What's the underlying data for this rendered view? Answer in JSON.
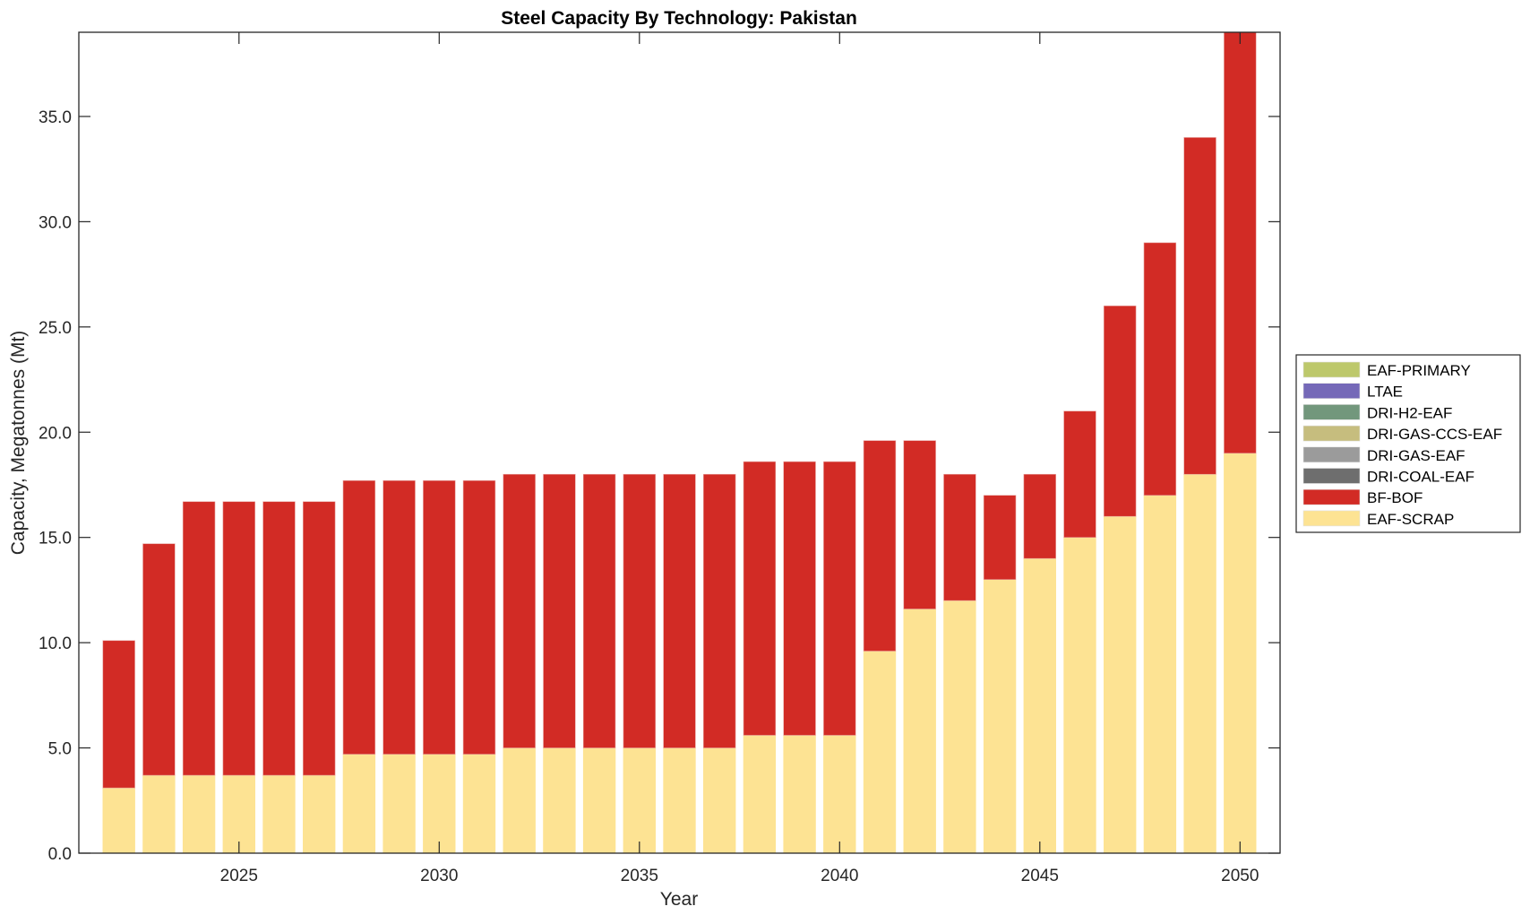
{
  "chart_data": {
    "type": "bar",
    "stacked": true,
    "title": "Steel Capacity By Technology: Pakistan",
    "xlabel": "Year",
    "ylabel": "Capacity, Megatonnes (Mt)",
    "xlim": [
      2021,
      2051
    ],
    "ylim": [
      0,
      39
    ],
    "xticks": [
      2025,
      2030,
      2035,
      2040,
      2045,
      2050
    ],
    "xtick_labels": [
      "2025",
      "2030",
      "2035",
      "2040",
      "2045",
      "2050"
    ],
    "yticks": [
      0,
      5,
      10,
      15,
      20,
      25,
      30,
      35
    ],
    "ytick_labels": [
      "0.0",
      "5.0",
      "10.0",
      "15.0",
      "20.0",
      "25.0",
      "30.0",
      "35.0"
    ],
    "grid": false,
    "legend_position": "right",
    "x": [
      2022,
      2023,
      2024,
      2025,
      2026,
      2027,
      2028,
      2029,
      2030,
      2031,
      2032,
      2033,
      2034,
      2035,
      2036,
      2037,
      2038,
      2039,
      2040,
      2041,
      2042,
      2043,
      2044,
      2045,
      2046,
      2047,
      2048,
      2049,
      2050
    ],
    "series": [
      {
        "name": "EAF-SCRAP",
        "color": "#FDE393",
        "values": [
          3.1,
          3.7,
          3.7,
          3.7,
          3.7,
          3.7,
          4.7,
          4.7,
          4.7,
          4.7,
          5.0,
          5.0,
          5.0,
          5.0,
          5.0,
          5.0,
          5.6,
          5.6,
          5.6,
          9.6,
          11.6,
          12.0,
          13.0,
          14.0,
          15.0,
          16.0,
          17.0,
          18.0,
          19.0
        ]
      },
      {
        "name": "BF-BOF",
        "color": "#D22B25",
        "values": [
          7.0,
          11.0,
          13.0,
          13.0,
          13.0,
          13.0,
          13.0,
          13.0,
          13.0,
          13.0,
          13.0,
          13.0,
          13.0,
          13.0,
          13.0,
          13.0,
          13.0,
          13.0,
          13.0,
          10.0,
          8.0,
          6.0,
          4.0,
          4.0,
          6.0,
          10.0,
          12.0,
          16.0,
          21.0
        ]
      },
      {
        "name": "DRI-COAL-EAF",
        "color": "#6E6E6E",
        "values": [
          0,
          0,
          0,
          0,
          0,
          0,
          0,
          0,
          0,
          0,
          0,
          0,
          0,
          0,
          0,
          0,
          0,
          0,
          0,
          0,
          0,
          0,
          0,
          0,
          0,
          0,
          0,
          0,
          0
        ]
      },
      {
        "name": "DRI-GAS-EAF",
        "color": "#9B9B9B",
        "values": [
          0,
          0,
          0,
          0,
          0,
          0,
          0,
          0,
          0,
          0,
          0,
          0,
          0,
          0,
          0,
          0,
          0,
          0,
          0,
          0,
          0,
          0,
          0,
          0,
          0,
          0,
          0,
          0,
          0
        ]
      },
      {
        "name": "DRI-GAS-CCS-EAF",
        "color": "#C6BD7E",
        "values": [
          0,
          0,
          0,
          0,
          0,
          0,
          0,
          0,
          0,
          0,
          0,
          0,
          0,
          0,
          0,
          0,
          0,
          0,
          0,
          0,
          0,
          0,
          0,
          0,
          0,
          0,
          0,
          0,
          0
        ]
      },
      {
        "name": "DRI-H2-EAF",
        "color": "#72977C",
        "values": [
          0,
          0,
          0,
          0,
          0,
          0,
          0,
          0,
          0,
          0,
          0,
          0,
          0,
          0,
          0,
          0,
          0,
          0,
          0,
          0,
          0,
          0,
          0,
          0,
          0,
          0,
          0,
          0,
          0
        ]
      },
      {
        "name": "LTAE",
        "color": "#7569B8",
        "values": [
          0,
          0,
          0,
          0,
          0,
          0,
          0,
          0,
          0,
          0,
          0,
          0,
          0,
          0,
          0,
          0,
          0,
          0,
          0,
          0,
          0,
          0,
          0,
          0,
          0,
          0,
          0,
          0,
          0
        ]
      },
      {
        "name": "EAF-PRIMARY",
        "color": "#BDC86B",
        "values": [
          0,
          0,
          0,
          0,
          0,
          0,
          0,
          0,
          0,
          0,
          0,
          0,
          0,
          0,
          0,
          0,
          0,
          0,
          0,
          0,
          0,
          0,
          0,
          0,
          0,
          0,
          0,
          0,
          0
        ]
      }
    ],
    "legend": [
      {
        "label": "EAF-PRIMARY",
        "color": "#BDC86B"
      },
      {
        "label": "LTAE",
        "color": "#7569B8"
      },
      {
        "label": "DRI-H2-EAF",
        "color": "#72977C"
      },
      {
        "label": "DRI-GAS-CCS-EAF",
        "color": "#C6BD7E"
      },
      {
        "label": "DRI-GAS-EAF",
        "color": "#9B9B9B"
      },
      {
        "label": "DRI-COAL-EAF",
        "color": "#6E6E6E"
      },
      {
        "label": "BF-BOF",
        "color": "#D22B25"
      },
      {
        "label": "EAF-SCRAP",
        "color": "#FDE393"
      }
    ]
  }
}
